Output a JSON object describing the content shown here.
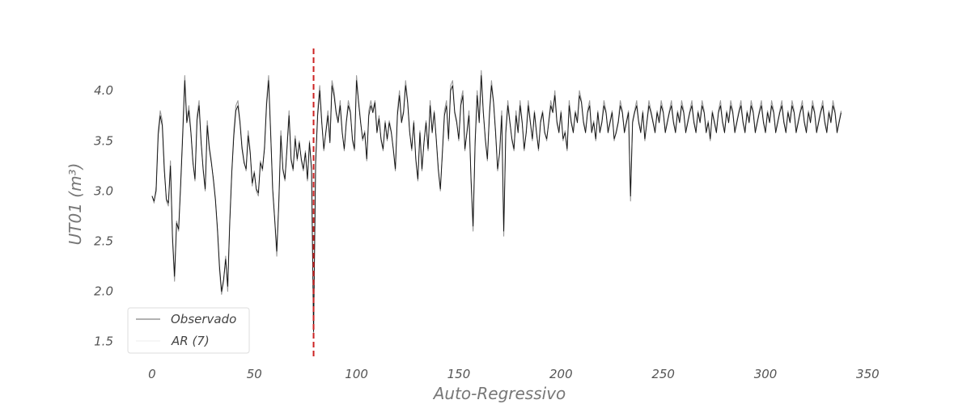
{
  "chart_data": {
    "type": "line",
    "title": "",
    "xlabel": "Auto-Regressivo",
    "ylabel": "UT01 (m³)",
    "xlim": [
      -15,
      355
    ],
    "ylim": [
      1.32,
      4.42
    ],
    "xticks": [
      0,
      50,
      100,
      150,
      200,
      250,
      300,
      350
    ],
    "yticks": [
      1.5,
      2.0,
      2.5,
      3.0,
      3.5,
      4.0
    ],
    "xtick_labels": [
      "0",
      "50",
      "100",
      "150",
      "200",
      "250",
      "300",
      "350"
    ],
    "ytick_labels": [
      "1.5",
      "2.0",
      "2.5",
      "3.0",
      "3.5",
      "4.0"
    ],
    "grid": false,
    "legend_position": "lower-left",
    "vline": {
      "x": 79,
      "color": "#cc2222",
      "style": "dashed"
    },
    "series": [
      {
        "name": "Observado",
        "color": "#999999",
        "x_start": 0,
        "values": [
          2.95,
          2.88,
          3.05,
          3.6,
          3.8,
          3.7,
          3.25,
          2.9,
          2.85,
          3.3,
          2.5,
          2.1,
          2.7,
          2.6,
          3.1,
          3.6,
          4.15,
          3.7,
          3.85,
          3.6,
          3.3,
          3.1,
          3.75,
          3.9,
          3.5,
          3.2,
          3.0,
          3.7,
          3.45,
          3.3,
          3.1,
          2.9,
          2.6,
          2.2,
          1.97,
          2.1,
          2.35,
          2.0,
          2.7,
          3.2,
          3.6,
          3.85,
          3.9,
          3.7,
          3.45,
          3.3,
          3.2,
          3.6,
          3.4,
          3.05,
          3.2,
          3.0,
          2.95,
          3.3,
          3.2,
          3.45,
          3.9,
          4.15,
          3.6,
          3.0,
          2.7,
          2.35,
          2.9,
          3.6,
          3.2,
          3.1,
          3.45,
          3.8,
          3.3,
          3.2,
          3.55,
          3.3,
          3.5,
          3.3,
          3.2,
          3.4,
          3.1,
          3.5,
          3.2,
          1.55,
          3.3,
          3.8,
          4.05,
          3.7,
          3.4,
          3.6,
          3.8,
          3.5,
          4.1,
          4.0,
          3.8,
          3.7,
          3.9,
          3.6,
          3.4,
          3.7,
          3.9,
          3.8,
          3.5,
          3.4,
          4.15,
          3.9,
          3.7,
          3.5,
          3.6,
          3.3,
          3.8,
          3.9,
          3.8,
          3.9,
          3.6,
          3.75,
          3.5,
          3.4,
          3.7,
          3.5,
          3.7,
          3.6,
          3.4,
          3.2,
          3.8,
          4.0,
          3.7,
          3.8,
          4.1,
          3.9,
          3.6,
          3.4,
          3.7,
          3.3,
          3.1,
          3.6,
          3.2,
          3.5,
          3.7,
          3.4,
          3.9,
          3.6,
          3.8,
          3.5,
          3.2,
          3.0,
          3.4,
          3.8,
          3.9,
          3.5,
          4.05,
          4.1,
          3.8,
          3.7,
          3.5,
          3.9,
          4.0,
          3.4,
          3.6,
          3.8,
          3.1,
          2.6,
          3.5,
          4.0,
          3.7,
          4.2,
          3.8,
          3.5,
          3.3,
          3.8,
          4.1,
          3.9,
          3.6,
          3.2,
          3.4,
          3.8,
          2.55,
          3.6,
          3.9,
          3.7,
          3.5,
          3.4,
          3.8,
          3.6,
          3.9,
          3.7,
          3.4,
          3.6,
          3.9,
          3.7,
          3.5,
          3.8,
          3.6,
          3.4,
          3.7,
          3.8,
          3.6,
          3.5,
          3.7,
          3.9,
          3.8,
          4.0,
          3.7,
          3.6,
          3.8,
          3.5,
          3.6,
          3.4,
          3.9,
          3.7,
          3.6,
          3.8,
          3.7,
          4.0,
          3.9,
          3.7,
          3.6,
          3.8,
          3.9,
          3.6,
          3.7,
          3.5,
          3.8,
          3.6,
          3.7,
          3.9,
          3.8,
          3.6,
          3.7,
          3.8,
          3.5,
          3.6,
          3.7,
          3.9,
          3.8,
          3.6,
          3.7,
          3.8,
          2.9,
          3.7,
          3.8,
          3.9,
          3.7,
          3.6,
          3.8,
          3.5,
          3.7,
          3.9,
          3.8,
          3.7,
          3.6,
          3.8,
          3.7,
          3.9,
          3.8,
          3.6,
          3.7,
          3.8,
          3.9,
          3.7,
          3.6,
          3.8,
          3.7,
          3.9,
          3.8,
          3.6,
          3.7,
          3.8,
          3.9,
          3.7,
          3.6,
          3.8,
          3.7,
          3.9,
          3.8,
          3.6,
          3.7,
          3.5,
          3.8,
          3.7,
          3.6,
          3.8,
          3.9,
          3.7,
          3.6,
          3.8,
          3.7,
          3.9,
          3.8,
          3.6,
          3.7,
          3.8,
          3.9,
          3.7,
          3.6,
          3.8,
          3.7,
          3.9,
          3.8,
          3.6,
          3.7,
          3.8,
          3.9,
          3.7,
          3.6,
          3.8,
          3.7,
          3.9,
          3.8,
          3.6,
          3.7,
          3.8,
          3.9,
          3.7,
          3.6,
          3.8,
          3.7,
          3.9,
          3.8,
          3.6,
          3.7,
          3.8,
          3.9,
          3.7,
          3.6,
          3.8,
          3.7,
          3.9,
          3.8,
          3.6,
          3.7,
          3.8,
          3.9,
          3.7,
          3.6,
          3.8,
          3.7,
          3.9,
          3.8,
          3.6,
          3.7,
          3.8
        ]
      },
      {
        "name": "AR (7)",
        "color": "#111111",
        "x_start": 0,
        "values": [
          2.95,
          2.9,
          3.0,
          3.55,
          3.75,
          3.65,
          3.2,
          2.92,
          2.88,
          3.25,
          2.55,
          2.15,
          2.68,
          2.62,
          3.05,
          3.55,
          4.1,
          3.68,
          3.8,
          3.58,
          3.28,
          3.12,
          3.7,
          3.85,
          3.48,
          3.22,
          3.02,
          3.65,
          3.42,
          3.28,
          3.12,
          2.92,
          2.62,
          2.25,
          2.0,
          2.12,
          2.32,
          2.05,
          2.68,
          3.18,
          3.55,
          3.8,
          3.85,
          3.68,
          3.42,
          3.28,
          3.22,
          3.55,
          3.38,
          3.08,
          3.18,
          3.02,
          2.98,
          3.28,
          3.22,
          3.42,
          3.85,
          4.1,
          3.58,
          3.02,
          2.72,
          2.4,
          2.88,
          3.55,
          3.22,
          3.12,
          3.42,
          3.75,
          3.32,
          3.22,
          3.52,
          3.32,
          3.48,
          3.32,
          3.22,
          3.38,
          3.12,
          3.48,
          3.22,
          1.6,
          3.28,
          3.75,
          4.0,
          3.68,
          3.42,
          3.58,
          3.75,
          3.48,
          4.05,
          3.95,
          3.78,
          3.68,
          3.85,
          3.58,
          3.42,
          3.68,
          3.85,
          3.78,
          3.52,
          3.42,
          4.1,
          3.88,
          3.68,
          3.52,
          3.58,
          3.32,
          3.75,
          3.85,
          3.78,
          3.88,
          3.58,
          3.72,
          3.52,
          3.42,
          3.68,
          3.52,
          3.68,
          3.58,
          3.42,
          3.22,
          3.75,
          3.95,
          3.68,
          3.78,
          4.05,
          3.88,
          3.58,
          3.42,
          3.68,
          3.32,
          3.12,
          3.58,
          3.22,
          3.48,
          3.68,
          3.42,
          3.85,
          3.58,
          3.78,
          3.52,
          3.22,
          3.02,
          3.38,
          3.75,
          3.85,
          3.52,
          4.0,
          4.05,
          3.78,
          3.68,
          3.52,
          3.85,
          3.95,
          3.42,
          3.58,
          3.75,
          3.12,
          2.65,
          3.48,
          3.95,
          3.68,
          4.15,
          3.78,
          3.52,
          3.32,
          3.75,
          4.05,
          3.88,
          3.58,
          3.22,
          3.38,
          3.75,
          2.6,
          3.58,
          3.85,
          3.68,
          3.52,
          3.42,
          3.75,
          3.58,
          3.85,
          3.68,
          3.42,
          3.58,
          3.85,
          3.68,
          3.52,
          3.78,
          3.58,
          3.42,
          3.68,
          3.78,
          3.58,
          3.52,
          3.68,
          3.85,
          3.78,
          3.95,
          3.68,
          3.58,
          3.78,
          3.52,
          3.58,
          3.42,
          3.85,
          3.68,
          3.58,
          3.78,
          3.68,
          3.95,
          3.88,
          3.68,
          3.58,
          3.78,
          3.85,
          3.58,
          3.68,
          3.52,
          3.78,
          3.58,
          3.68,
          3.85,
          3.78,
          3.58,
          3.68,
          3.78,
          3.52,
          3.58,
          3.68,
          3.85,
          3.78,
          3.58,
          3.68,
          3.78,
          2.95,
          3.68,
          3.78,
          3.85,
          3.68,
          3.58,
          3.78,
          3.52,
          3.68,
          3.85,
          3.78,
          3.68,
          3.58,
          3.78,
          3.68,
          3.85,
          3.78,
          3.58,
          3.68,
          3.78,
          3.85,
          3.68,
          3.58,
          3.78,
          3.68,
          3.85,
          3.78,
          3.58,
          3.68,
          3.78,
          3.85,
          3.68,
          3.58,
          3.78,
          3.68,
          3.85,
          3.78,
          3.58,
          3.68,
          3.52,
          3.78,
          3.68,
          3.58,
          3.78,
          3.85,
          3.68,
          3.58,
          3.78,
          3.68,
          3.85,
          3.78,
          3.58,
          3.68,
          3.78,
          3.85,
          3.68,
          3.58,
          3.78,
          3.68,
          3.85,
          3.78,
          3.58,
          3.68,
          3.78,
          3.85,
          3.68,
          3.58,
          3.78,
          3.68,
          3.85,
          3.78,
          3.58,
          3.68,
          3.78,
          3.85,
          3.68,
          3.58,
          3.78,
          3.68,
          3.85,
          3.78,
          3.58,
          3.68,
          3.78,
          3.85,
          3.68,
          3.58,
          3.78,
          3.68,
          3.85,
          3.78,
          3.58,
          3.68,
          3.78,
          3.85,
          3.68,
          3.58,
          3.78,
          3.68,
          3.85,
          3.78,
          3.58,
          3.68,
          3.78
        ]
      }
    ]
  }
}
